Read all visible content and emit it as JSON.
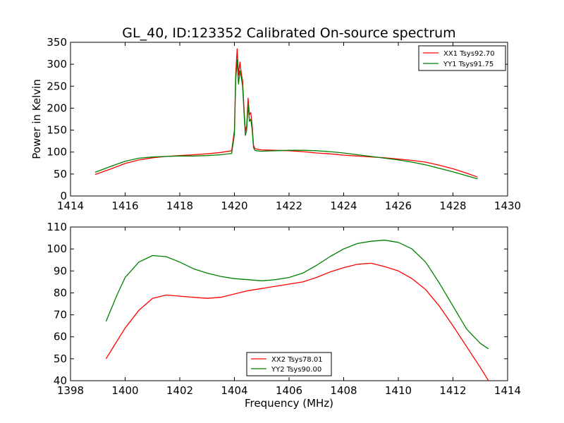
{
  "chart_data": [
    {
      "type": "line",
      "title": "GL_40, ID:123352 Calibrated On-source spectrum",
      "xlabel": "",
      "ylabel": "Power in Kelvin",
      "xlim": [
        1414,
        1430
      ],
      "ylim": [
        0,
        350
      ],
      "xticks": [
        "1414",
        "1416",
        "1418",
        "1420",
        "1422",
        "1424",
        "1426",
        "1428",
        "1430"
      ],
      "yticks": [
        "0",
        "50",
        "100",
        "150",
        "200",
        "250",
        "300",
        "350"
      ],
      "legend_position": "top-right",
      "series": [
        {
          "name": "XX1 Tsys92.70",
          "color": "#ff0000",
          "x": [
            1414.9,
            1415.5,
            1416.0,
            1416.5,
            1417.0,
            1417.5,
            1418.0,
            1418.5,
            1419.0,
            1419.5,
            1419.9,
            1420.0,
            1420.05,
            1420.1,
            1420.15,
            1420.2,
            1420.25,
            1420.3,
            1420.35,
            1420.4,
            1420.45,
            1420.5,
            1420.55,
            1420.6,
            1420.65,
            1420.7,
            1420.75,
            1420.8,
            1421.0,
            1421.5,
            1422.0,
            1422.5,
            1423.0,
            1423.5,
            1424.0,
            1424.5,
            1425.0,
            1425.5,
            1426.0,
            1426.5,
            1427.0,
            1427.5,
            1428.0,
            1428.5,
            1428.9
          ],
          "y": [
            49,
            62,
            74,
            82,
            87,
            90,
            92,
            94,
            96,
            99,
            103,
            150,
            280,
            335,
            275,
            305,
            280,
            262,
            200,
            148,
            160,
            223,
            185,
            190,
            160,
            115,
            108,
            107,
            105,
            104,
            103,
            101,
            98,
            96,
            93,
            91,
            89,
            87,
            84,
            81,
            77,
            70,
            62,
            52,
            43
          ]
        },
        {
          "name": "YY1 Tsys91.75",
          "color": "#008000",
          "x": [
            1414.9,
            1415.5,
            1416.0,
            1416.5,
            1417.0,
            1417.5,
            1418.0,
            1418.5,
            1419.0,
            1419.5,
            1419.9,
            1420.0,
            1420.05,
            1420.1,
            1420.15,
            1420.2,
            1420.25,
            1420.3,
            1420.35,
            1420.4,
            1420.45,
            1420.5,
            1420.55,
            1420.6,
            1420.65,
            1420.7,
            1420.75,
            1420.8,
            1421.0,
            1421.5,
            1422.0,
            1422.5,
            1423.0,
            1423.5,
            1424.0,
            1424.5,
            1425.0,
            1425.5,
            1426.0,
            1426.5,
            1427.0,
            1427.5,
            1428.0,
            1428.5,
            1428.9
          ],
          "y": [
            54,
            68,
            79,
            86,
            89,
            90,
            91,
            91,
            92,
            94,
            97,
            140,
            265,
            310,
            255,
            285,
            270,
            250,
            190,
            138,
            150,
            210,
            170,
            175,
            150,
            110,
            104,
            103,
            102,
            103,
            104,
            104,
            103,
            101,
            98,
            94,
            90,
            86,
            82,
            77,
            71,
            63,
            55,
            46,
            39
          ]
        }
      ]
    },
    {
      "type": "line",
      "title": "",
      "xlabel": "Frequency (MHz)",
      "ylabel": "",
      "xlim": [
        1398,
        1414
      ],
      "ylim": [
        40,
        110
      ],
      "xticks": [
        "1398",
        "1400",
        "1402",
        "1404",
        "1406",
        "1408",
        "1410",
        "1412",
        "1414"
      ],
      "yticks": [
        "40",
        "50",
        "60",
        "70",
        "80",
        "90",
        "100",
        "110"
      ],
      "legend_position": "bottom-center",
      "series": [
        {
          "name": "XX2 Tsys78.01",
          "color": "#ff0000",
          "x": [
            1399.3,
            1399.7,
            1400.0,
            1400.5,
            1401.0,
            1401.5,
            1402.0,
            1402.5,
            1403.0,
            1403.5,
            1404.0,
            1404.5,
            1405.0,
            1405.5,
            1406.0,
            1406.5,
            1407.0,
            1407.5,
            1408.0,
            1408.5,
            1409.0,
            1409.5,
            1410.0,
            1410.5,
            1411.0,
            1411.5,
            1412.0,
            1412.5,
            1413.0,
            1413.3
          ],
          "y": [
            50,
            58,
            64,
            72,
            77.5,
            79,
            78.5,
            78,
            77.5,
            78,
            79.5,
            81,
            82,
            83,
            84,
            85,
            87,
            89.5,
            91.5,
            93,
            93.5,
            92,
            90,
            86.5,
            81.5,
            74,
            65,
            55.5,
            46,
            40
          ]
        },
        {
          "name": "YY2 Tsys90.00",
          "color": "#008000",
          "x": [
            1399.3,
            1399.7,
            1400.0,
            1400.5,
            1401.0,
            1401.5,
            1402.0,
            1402.5,
            1403.0,
            1403.5,
            1404.0,
            1404.5,
            1405.0,
            1405.5,
            1406.0,
            1406.5,
            1407.0,
            1407.5,
            1408.0,
            1408.5,
            1409.0,
            1409.5,
            1410.0,
            1410.5,
            1411.0,
            1411.5,
            1412.0,
            1412.5,
            1413.0,
            1413.3
          ],
          "y": [
            67,
            79,
            87,
            94,
            97,
            96.5,
            94,
            91,
            89,
            87.5,
            86.5,
            86,
            85.5,
            86,
            87,
            89,
            92.5,
            96.5,
            100,
            102.5,
            103.5,
            104,
            103,
            100,
            94,
            84.5,
            74,
            63.5,
            57,
            54.5
          ]
        }
      ]
    }
  ]
}
